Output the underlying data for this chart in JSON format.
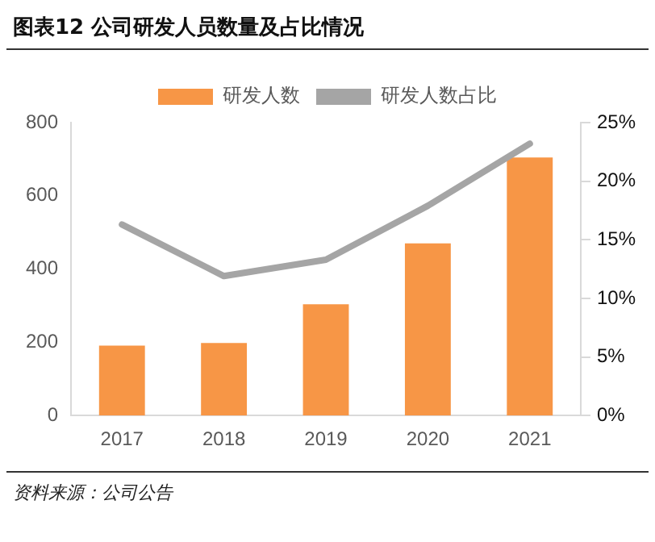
{
  "chart_data": {
    "type": "bar",
    "title": "图表12    公司研发人员数量及占比情况",
    "annotations": [
      "资料来源：公司公告"
    ],
    "categories": [
      "2017",
      "2018",
      "2019",
      "2020",
      "2021"
    ],
    "series": [
      {
        "name": "研发人数",
        "color": "#f79646",
        "values": [
          191,
          198,
          304,
          470,
          705
        ]
      },
      {
        "name": "研发人数占比",
        "type": "line",
        "axis": "y2",
        "color": "#a5a5a5",
        "values": [
          16.3,
          11.9,
          13.3,
          17.9,
          23.2
        ]
      }
    ],
    "ylim": [
      0,
      800
    ],
    "yticks": [
      0,
      200,
      400,
      600,
      800
    ],
    "y2lim": [
      0,
      25
    ],
    "y2ticks": [
      {
        "value": 0,
        "label": "0%"
      },
      {
        "value": 5,
        "label": "5%"
      },
      {
        "value": 10,
        "label": "10%"
      },
      {
        "value": 15,
        "label": "15%"
      },
      {
        "value": 20,
        "label": "20%"
      },
      {
        "value": 25,
        "label": "25%"
      }
    ],
    "grid": false,
    "legend": "top",
    "marker": "none",
    "line_style": "solid"
  }
}
